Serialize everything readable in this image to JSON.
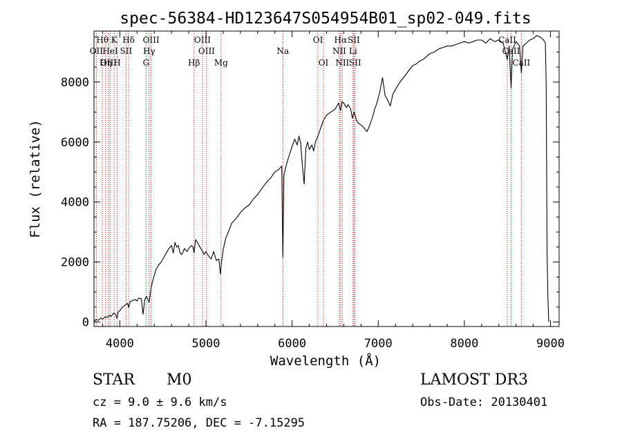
{
  "chart_data": {
    "type": "line",
    "title": "spec-56384-HD123647S054954B01_sp02-049.fits",
    "xlabel": "Wavelength (Å)",
    "ylabel": "Flux (relative)",
    "xlim": [
      3700,
      9100
    ],
    "ylim": [
      -150,
      9700
    ],
    "xticks": [
      4000,
      5000,
      6000,
      7000,
      8000,
      9000
    ],
    "xtick_labels": [
      "4000",
      "5000",
      "6000",
      "7000",
      "8000",
      "9000"
    ],
    "yticks": [
      0,
      2000,
      4000,
      6000,
      8000
    ],
    "ytick_labels": [
      "0",
      "2000",
      "4000",
      "6000",
      "8000"
    ],
    "grid": false,
    "line_color": "#000000",
    "marker_color": "#cc0000",
    "series": [
      {
        "name": "spectrum",
        "points": [
          [
            3700,
            0
          ],
          [
            3720,
            80
          ],
          [
            3750,
            60
          ],
          [
            3780,
            130
          ],
          [
            3800,
            90
          ],
          [
            3830,
            180
          ],
          [
            3850,
            150
          ],
          [
            3880,
            220
          ],
          [
            3900,
            190
          ],
          [
            3930,
            300
          ],
          [
            3950,
            260
          ],
          [
            3968,
            120
          ],
          [
            3980,
            330
          ],
          [
            4000,
            380
          ],
          [
            4030,
            500
          ],
          [
            4060,
            560
          ],
          [
            4090,
            620
          ],
          [
            4102,
            480
          ],
          [
            4120,
            680
          ],
          [
            4150,
            720
          ],
          [
            4180,
            750
          ],
          [
            4200,
            700
          ],
          [
            4220,
            800
          ],
          [
            4250,
            780
          ],
          [
            4270,
            260
          ],
          [
            4290,
            750
          ],
          [
            4310,
            850
          ],
          [
            4340,
            650
          ],
          [
            4360,
            1100
          ],
          [
            4380,
            1350
          ],
          [
            4400,
            1550
          ],
          [
            4420,
            1750
          ],
          [
            4450,
            1900
          ],
          [
            4480,
            2000
          ],
          [
            4510,
            2150
          ],
          [
            4540,
            2300
          ],
          [
            4570,
            2450
          ],
          [
            4600,
            2550
          ],
          [
            4620,
            2300
          ],
          [
            4640,
            2650
          ],
          [
            4660,
            2500
          ],
          [
            4680,
            2550
          ],
          [
            4700,
            2300
          ],
          [
            4720,
            2250
          ],
          [
            4750,
            2450
          ],
          [
            4780,
            2350
          ],
          [
            4800,
            2450
          ],
          [
            4830,
            2550
          ],
          [
            4850,
            2500
          ],
          [
            4861,
            2300
          ],
          [
            4880,
            2750
          ],
          [
            4900,
            2650
          ],
          [
            4920,
            2550
          ],
          [
            4950,
            2400
          ],
          [
            4980,
            2250
          ],
          [
            5000,
            2350
          ],
          [
            5030,
            2200
          ],
          [
            5060,
            2100
          ],
          [
            5090,
            2350
          ],
          [
            5120,
            2050
          ],
          [
            5150,
            2100
          ],
          [
            5167,
            1600
          ],
          [
            5180,
            2000
          ],
          [
            5200,
            2400
          ],
          [
            5230,
            2800
          ],
          [
            5260,
            3000
          ],
          [
            5300,
            3300
          ],
          [
            5350,
            3450
          ],
          [
            5400,
            3650
          ],
          [
            5450,
            3800
          ],
          [
            5500,
            3900
          ],
          [
            5550,
            4100
          ],
          [
            5600,
            4250
          ],
          [
            5650,
            4450
          ],
          [
            5700,
            4650
          ],
          [
            5750,
            4800
          ],
          [
            5800,
            5000
          ],
          [
            5850,
            5100
          ],
          [
            5880,
            5200
          ],
          [
            5893,
            2150
          ],
          [
            5905,
            4900
          ],
          [
            5930,
            5200
          ],
          [
            5960,
            5500
          ],
          [
            6000,
            5850
          ],
          [
            6030,
            6100
          ],
          [
            6060,
            5900
          ],
          [
            6080,
            6200
          ],
          [
            6100,
            5950
          ],
          [
            6120,
            5200
          ],
          [
            6140,
            4600
          ],
          [
            6160,
            5800
          ],
          [
            6180,
            6000
          ],
          [
            6200,
            5750
          ],
          [
            6230,
            5900
          ],
          [
            6250,
            5700
          ],
          [
            6270,
            6000
          ],
          [
            6300,
            6200
          ],
          [
            6330,
            6450
          ],
          [
            6360,
            6700
          ],
          [
            6400,
            6900
          ],
          [
            6450,
            7000
          ],
          [
            6500,
            7100
          ],
          [
            6540,
            7300
          ],
          [
            6563,
            7050
          ],
          [
            6580,
            7350
          ],
          [
            6600,
            7300
          ],
          [
            6630,
            7150
          ],
          [
            6650,
            7250
          ],
          [
            6680,
            7100
          ],
          [
            6700,
            6800
          ],
          [
            6720,
            7000
          ],
          [
            6750,
            6700
          ],
          [
            6780,
            6600
          ],
          [
            6810,
            6550
          ],
          [
            6840,
            6450
          ],
          [
            6870,
            6350
          ],
          [
            6900,
            6550
          ],
          [
            6930,
            6800
          ],
          [
            6960,
            7100
          ],
          [
            6990,
            7350
          ],
          [
            7020,
            7700
          ],
          [
            7050,
            8150
          ],
          [
            7080,
            7550
          ],
          [
            7110,
            7400
          ],
          [
            7140,
            7200
          ],
          [
            7170,
            7600
          ],
          [
            7200,
            7750
          ],
          [
            7240,
            7950
          ],
          [
            7280,
            8100
          ],
          [
            7320,
            8250
          ],
          [
            7360,
            8400
          ],
          [
            7400,
            8550
          ],
          [
            7440,
            8600
          ],
          [
            7480,
            8700
          ],
          [
            7520,
            8750
          ],
          [
            7560,
            8850
          ],
          [
            7600,
            8950
          ],
          [
            7650,
            9000
          ],
          [
            7700,
            9100
          ],
          [
            7750,
            9150
          ],
          [
            7800,
            9200
          ],
          [
            7850,
            9200
          ],
          [
            7900,
            9250
          ],
          [
            7950,
            9300
          ],
          [
            8000,
            9350
          ],
          [
            8050,
            9300
          ],
          [
            8100,
            9350
          ],
          [
            8150,
            9400
          ],
          [
            8200,
            9400
          ],
          [
            8250,
            9300
          ],
          [
            8300,
            9450
          ],
          [
            8350,
            9350
          ],
          [
            8400,
            9400
          ],
          [
            8450,
            9300
          ],
          [
            8498,
            8750
          ],
          [
            8520,
            9200
          ],
          [
            8542,
            7800
          ],
          [
            8560,
            9100
          ],
          [
            8600,
            9350
          ],
          [
            8640,
            9200
          ],
          [
            8662,
            8300
          ],
          [
            8680,
            9200
          ],
          [
            8720,
            9300
          ],
          [
            8760,
            9400
          ],
          [
            8800,
            9450
          ],
          [
            8840,
            9550
          ],
          [
            8880,
            9500
          ],
          [
            8920,
            9400
          ],
          [
            8940,
            9300
          ],
          [
            8950,
            7900
          ],
          [
            8960,
            2300
          ],
          [
            8970,
            800
          ],
          [
            8980,
            0
          ]
        ]
      }
    ],
    "annotations": [
      {
        "label": "Hθ",
        "x": 3798,
        "row": 1
      },
      {
        "label": "K",
        "x": 3934,
        "row": 1
      },
      {
        "label": "Hδ",
        "x": 4102,
        "row": 1
      },
      {
        "label": "OIII",
        "x": 4363,
        "row": 1
      },
      {
        "label": "OIII",
        "x": 4959,
        "row": 1
      },
      {
        "label": "OI",
        "x": 6300,
        "row": 1
      },
      {
        "label": "Hα",
        "x": 6563,
        "row": 1
      },
      {
        "label": "SII",
        "x": 6716,
        "row": 1
      },
      {
        "label": "CaII",
        "x": 8498,
        "row": 1
      },
      {
        "label": "OII",
        "x": 3727,
        "row": 2
      },
      {
        "label": "HeI",
        "x": 3889,
        "row": 2
      },
      {
        "label": "SII",
        "x": 4072,
        "row": 2
      },
      {
        "label": "Hγ",
        "x": 4340,
        "row": 2
      },
      {
        "label": "OIII",
        "x": 5007,
        "row": 2
      },
      {
        "label": "Na",
        "x": 5893,
        "row": 2
      },
      {
        "label": "NII",
        "x": 6548,
        "row": 2
      },
      {
        "label": "Li",
        "x": 6708,
        "row": 2
      },
      {
        "label": "CaII",
        "x": 8542,
        "row": 2
      },
      {
        "label": "OIII",
        "x": 3869,
        "row": 3
      },
      {
        "label": "Hη",
        "x": 3835,
        "row": 3
      },
      {
        "label": "H",
        "x": 3969,
        "row": 3
      },
      {
        "label": "G",
        "x": 4305,
        "row": 3
      },
      {
        "label": "Hβ",
        "x": 4861,
        "row": 3
      },
      {
        "label": "Mg",
        "x": 5175,
        "row": 3
      },
      {
        "label": "OI",
        "x": 6364,
        "row": 3
      },
      {
        "label": "NII",
        "x": 6583,
        "row": 3
      },
      {
        "label": "SII",
        "x": 6731,
        "row": 3
      },
      {
        "label": "CaII",
        "x": 8662,
        "row": 3
      }
    ]
  },
  "info": {
    "object_class": "STAR",
    "subclass": "M0",
    "survey": "LAMOST DR3",
    "cz": "cz = 9.0 ± 9.6 km/s",
    "obs_date": "Obs-Date: 20130401",
    "coords": "RA = 187.75206, DEC =  -7.15295"
  }
}
